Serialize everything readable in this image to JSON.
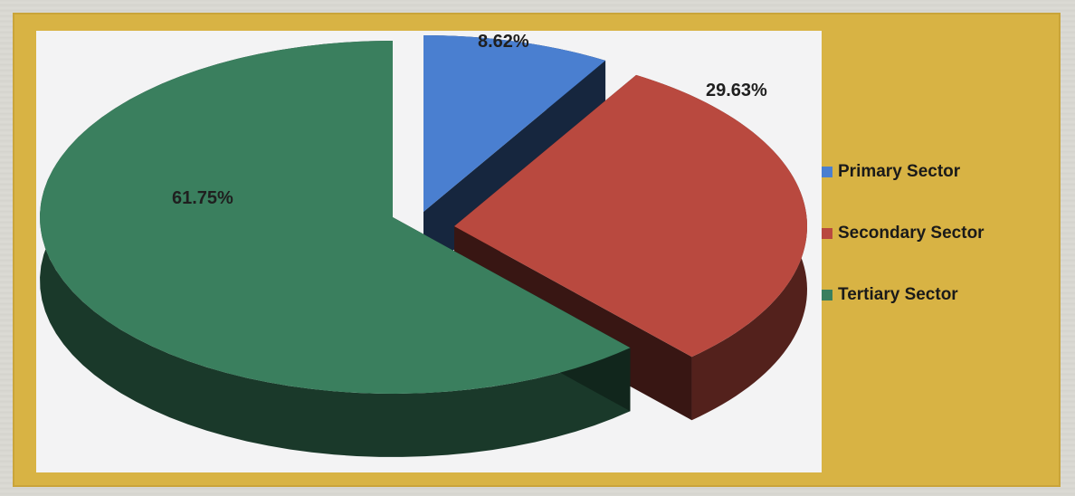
{
  "chart_data": {
    "type": "pie",
    "style": "3d-exploded",
    "series": [
      {
        "name": "Primary Sector",
        "value": 8.62,
        "color": "#4a7fd0",
        "label": "8.62%"
      },
      {
        "name": "Secondary Sector",
        "value": 29.63,
        "color": "#b9493f",
        "label": "29.63%"
      },
      {
        "name": "Tertiary Sector",
        "value": 61.75,
        "color": "#3a7f5e",
        "label": "61.75%"
      }
    ],
    "legend_placement": "right"
  }
}
